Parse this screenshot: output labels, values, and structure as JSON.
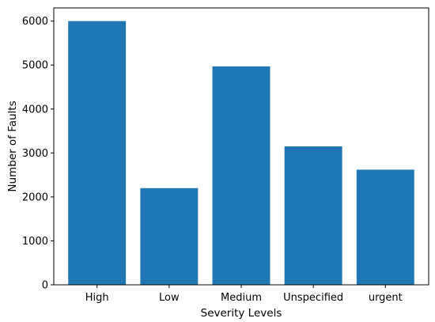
{
  "chart_data": {
    "type": "bar",
    "title": "",
    "xlabel": "Severity Levels",
    "ylabel": "Number of Faults",
    "categories": [
      "High",
      "Low",
      "Medium",
      "Unspecified",
      "urgent"
    ],
    "values": [
      6000,
      2200,
      4970,
      3150,
      2620
    ],
    "ylim": [
      0,
      6300
    ],
    "yticks": [
      0,
      1000,
      2000,
      3000,
      4000,
      5000,
      6000
    ],
    "bar_color": "#1f77b4",
    "grid": false,
    "legend": "none"
  }
}
